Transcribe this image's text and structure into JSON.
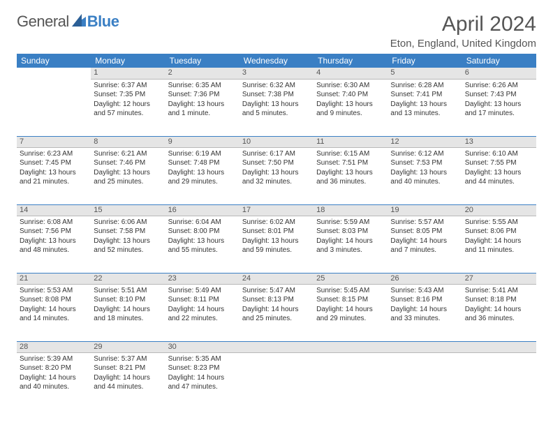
{
  "brand": {
    "part1": "General",
    "part2": "Blue"
  },
  "colors": {
    "accent": "#3a7fc4",
    "header_bg": "#3a7fc4",
    "daynum_bg": "#e5e5e5",
    "text": "#333333",
    "muted": "#555555"
  },
  "title": "April 2024",
  "location": "Eton, England, United Kingdom",
  "weekdays": [
    "Sunday",
    "Monday",
    "Tuesday",
    "Wednesday",
    "Thursday",
    "Friday",
    "Saturday"
  ],
  "weeks": [
    [
      null,
      {
        "n": "1",
        "sr": "Sunrise: 6:37 AM",
        "ss": "Sunset: 7:35 PM",
        "d1": "Daylight: 12 hours",
        "d2": "and 57 minutes."
      },
      {
        "n": "2",
        "sr": "Sunrise: 6:35 AM",
        "ss": "Sunset: 7:36 PM",
        "d1": "Daylight: 13 hours",
        "d2": "and 1 minute."
      },
      {
        "n": "3",
        "sr": "Sunrise: 6:32 AM",
        "ss": "Sunset: 7:38 PM",
        "d1": "Daylight: 13 hours",
        "d2": "and 5 minutes."
      },
      {
        "n": "4",
        "sr": "Sunrise: 6:30 AM",
        "ss": "Sunset: 7:40 PM",
        "d1": "Daylight: 13 hours",
        "d2": "and 9 minutes."
      },
      {
        "n": "5",
        "sr": "Sunrise: 6:28 AM",
        "ss": "Sunset: 7:41 PM",
        "d1": "Daylight: 13 hours",
        "d2": "and 13 minutes."
      },
      {
        "n": "6",
        "sr": "Sunrise: 6:26 AM",
        "ss": "Sunset: 7:43 PM",
        "d1": "Daylight: 13 hours",
        "d2": "and 17 minutes."
      }
    ],
    [
      {
        "n": "7",
        "sr": "Sunrise: 6:23 AM",
        "ss": "Sunset: 7:45 PM",
        "d1": "Daylight: 13 hours",
        "d2": "and 21 minutes."
      },
      {
        "n": "8",
        "sr": "Sunrise: 6:21 AM",
        "ss": "Sunset: 7:46 PM",
        "d1": "Daylight: 13 hours",
        "d2": "and 25 minutes."
      },
      {
        "n": "9",
        "sr": "Sunrise: 6:19 AM",
        "ss": "Sunset: 7:48 PM",
        "d1": "Daylight: 13 hours",
        "d2": "and 29 minutes."
      },
      {
        "n": "10",
        "sr": "Sunrise: 6:17 AM",
        "ss": "Sunset: 7:50 PM",
        "d1": "Daylight: 13 hours",
        "d2": "and 32 minutes."
      },
      {
        "n": "11",
        "sr": "Sunrise: 6:15 AM",
        "ss": "Sunset: 7:51 PM",
        "d1": "Daylight: 13 hours",
        "d2": "and 36 minutes."
      },
      {
        "n": "12",
        "sr": "Sunrise: 6:12 AM",
        "ss": "Sunset: 7:53 PM",
        "d1": "Daylight: 13 hours",
        "d2": "and 40 minutes."
      },
      {
        "n": "13",
        "sr": "Sunrise: 6:10 AM",
        "ss": "Sunset: 7:55 PM",
        "d1": "Daylight: 13 hours",
        "d2": "and 44 minutes."
      }
    ],
    [
      {
        "n": "14",
        "sr": "Sunrise: 6:08 AM",
        "ss": "Sunset: 7:56 PM",
        "d1": "Daylight: 13 hours",
        "d2": "and 48 minutes."
      },
      {
        "n": "15",
        "sr": "Sunrise: 6:06 AM",
        "ss": "Sunset: 7:58 PM",
        "d1": "Daylight: 13 hours",
        "d2": "and 52 minutes."
      },
      {
        "n": "16",
        "sr": "Sunrise: 6:04 AM",
        "ss": "Sunset: 8:00 PM",
        "d1": "Daylight: 13 hours",
        "d2": "and 55 minutes."
      },
      {
        "n": "17",
        "sr": "Sunrise: 6:02 AM",
        "ss": "Sunset: 8:01 PM",
        "d1": "Daylight: 13 hours",
        "d2": "and 59 minutes."
      },
      {
        "n": "18",
        "sr": "Sunrise: 5:59 AM",
        "ss": "Sunset: 8:03 PM",
        "d1": "Daylight: 14 hours",
        "d2": "and 3 minutes."
      },
      {
        "n": "19",
        "sr": "Sunrise: 5:57 AM",
        "ss": "Sunset: 8:05 PM",
        "d1": "Daylight: 14 hours",
        "d2": "and 7 minutes."
      },
      {
        "n": "20",
        "sr": "Sunrise: 5:55 AM",
        "ss": "Sunset: 8:06 PM",
        "d1": "Daylight: 14 hours",
        "d2": "and 11 minutes."
      }
    ],
    [
      {
        "n": "21",
        "sr": "Sunrise: 5:53 AM",
        "ss": "Sunset: 8:08 PM",
        "d1": "Daylight: 14 hours",
        "d2": "and 14 minutes."
      },
      {
        "n": "22",
        "sr": "Sunrise: 5:51 AM",
        "ss": "Sunset: 8:10 PM",
        "d1": "Daylight: 14 hours",
        "d2": "and 18 minutes."
      },
      {
        "n": "23",
        "sr": "Sunrise: 5:49 AM",
        "ss": "Sunset: 8:11 PM",
        "d1": "Daylight: 14 hours",
        "d2": "and 22 minutes."
      },
      {
        "n": "24",
        "sr": "Sunrise: 5:47 AM",
        "ss": "Sunset: 8:13 PM",
        "d1": "Daylight: 14 hours",
        "d2": "and 25 minutes."
      },
      {
        "n": "25",
        "sr": "Sunrise: 5:45 AM",
        "ss": "Sunset: 8:15 PM",
        "d1": "Daylight: 14 hours",
        "d2": "and 29 minutes."
      },
      {
        "n": "26",
        "sr": "Sunrise: 5:43 AM",
        "ss": "Sunset: 8:16 PM",
        "d1": "Daylight: 14 hours",
        "d2": "and 33 minutes."
      },
      {
        "n": "27",
        "sr": "Sunrise: 5:41 AM",
        "ss": "Sunset: 8:18 PM",
        "d1": "Daylight: 14 hours",
        "d2": "and 36 minutes."
      }
    ],
    [
      {
        "n": "28",
        "sr": "Sunrise: 5:39 AM",
        "ss": "Sunset: 8:20 PM",
        "d1": "Daylight: 14 hours",
        "d2": "and 40 minutes."
      },
      {
        "n": "29",
        "sr": "Sunrise: 5:37 AM",
        "ss": "Sunset: 8:21 PM",
        "d1": "Daylight: 14 hours",
        "d2": "and 44 minutes."
      },
      {
        "n": "30",
        "sr": "Sunrise: 5:35 AM",
        "ss": "Sunset: 8:23 PM",
        "d1": "Daylight: 14 hours",
        "d2": "and 47 minutes."
      },
      null,
      null,
      null,
      null
    ]
  ]
}
